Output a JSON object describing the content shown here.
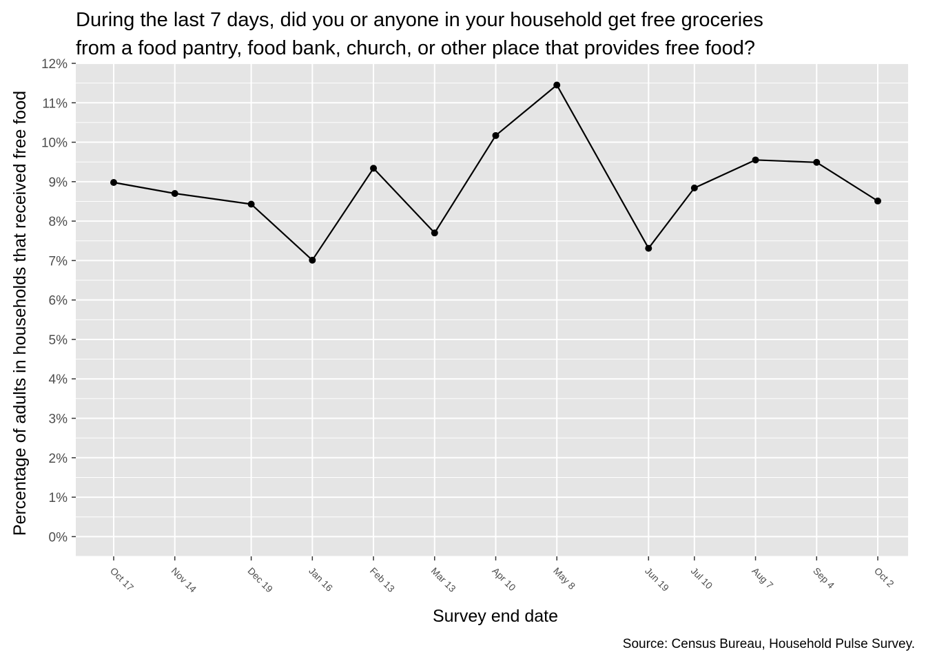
{
  "chart_data": {
    "type": "line",
    "title_lines": [
      "During the last 7 days, did you or anyone in your household get free groceries",
      "from a food pantry, food bank, church, or other place that provides free food?"
    ],
    "xlabel": "Survey end date",
    "ylabel": "Percentage of adults in households that received free food",
    "caption": "Source: Census Bureau, Household Pulse Survey.",
    "ylim": [
      -0.5,
      12.0
    ],
    "y_ticks": [
      0,
      1,
      2,
      3,
      4,
      5,
      6,
      7,
      8,
      9,
      10,
      11,
      12
    ],
    "y_tick_labels": [
      "0%",
      "1%",
      "2%",
      "3%",
      "4%",
      "5%",
      "6%",
      "7%",
      "8%",
      "9%",
      "10%",
      "11%",
      "12%"
    ],
    "x_dates": [
      "2022-10-17",
      "2022-11-14",
      "2022-12-19",
      "2023-01-16",
      "2023-02-13",
      "2023-03-13",
      "2023-04-10",
      "2023-05-08",
      "2023-06-19",
      "2023-07-10",
      "2023-08-07",
      "2023-09-04",
      "2023-10-02"
    ],
    "x_tick_labels": [
      "Oct 17",
      "Nov 14",
      "Dec 19",
      "Jan 16",
      "Feb 13",
      "Mar 13",
      "Apr 10",
      "May 8",
      "Jun 19",
      "Jul 10",
      "Aug 7",
      "Sep 4",
      "Oct 2"
    ],
    "series": [
      {
        "values": [
          8.98,
          8.7,
          8.43,
          7.01,
          9.34,
          7.7,
          10.17,
          11.45,
          7.31,
          8.84,
          9.55,
          9.49,
          8.51
        ]
      }
    ],
    "grid": true,
    "colors": {
      "panel": "#e5e5e5",
      "grid_major": "#ffffff",
      "line": "#000000",
      "point": "#000000",
      "tick_text": "#4d4d4d"
    }
  }
}
